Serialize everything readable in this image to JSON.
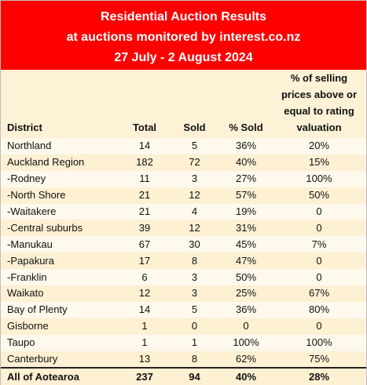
{
  "banner": {
    "line1": "Residential Auction Results",
    "line2": "at auctions monitored by interest.co.nz",
    "line3": "27 July - 2 August 2024"
  },
  "headers": {
    "district": "District",
    "total": "Total",
    "sold": "Sold",
    "pct_sold": "% Sold",
    "valuation_line1": "% of selling",
    "valuation_line2": "prices above or",
    "valuation_line3": "equal to rating",
    "valuation_line4": "valuation"
  },
  "rows": [
    {
      "district": "Northland",
      "total": "14",
      "sold": "5",
      "pct_sold": "36%",
      "valuation": "20%"
    },
    {
      "district": "Auckland Region",
      "total": "182",
      "sold": "72",
      "pct_sold": "40%",
      "valuation": "15%"
    },
    {
      "district": "-Rodney",
      "total": "11",
      "sold": "3",
      "pct_sold": "27%",
      "valuation": "100%"
    },
    {
      "district": "-North Shore",
      "total": "21",
      "sold": "12",
      "pct_sold": "57%",
      "valuation": "50%"
    },
    {
      "district": "-Waitakere",
      "total": "21",
      "sold": "4",
      "pct_sold": "19%",
      "valuation": "0"
    },
    {
      "district": "-Central suburbs",
      "total": "39",
      "sold": "12",
      "pct_sold": "31%",
      "valuation": "0"
    },
    {
      "district": "-Manukau",
      "total": "67",
      "sold": "30",
      "pct_sold": "45%",
      "valuation": "7%"
    },
    {
      "district": "-Papakura",
      "total": "17",
      "sold": "8",
      "pct_sold": "47%",
      "valuation": "0"
    },
    {
      "district": "-Franklin",
      "total": "6",
      "sold": "3",
      "pct_sold": "50%",
      "valuation": "0"
    },
    {
      "district": "Waikato",
      "total": "12",
      "sold": "3",
      "pct_sold": "25%",
      "valuation": "67%"
    },
    {
      "district": "Bay of Plenty",
      "total": "14",
      "sold": "5",
      "pct_sold": "36%",
      "valuation": "80%"
    },
    {
      "district": "Gisborne",
      "total": "1",
      "sold": "0",
      "pct_sold": "0",
      "valuation": "0"
    },
    {
      "district": "Taupo",
      "total": "1",
      "sold": "1",
      "pct_sold": "100%",
      "valuation": "100%"
    },
    {
      "district": "Canterbury",
      "total": "13",
      "sold": "8",
      "pct_sold": "62%",
      "valuation": "75%"
    }
  ],
  "total_row": {
    "district": "All of Aotearoa",
    "total": "237",
    "sold": "94",
    "pct_sold": "40%",
    "valuation": "28%"
  },
  "colors": {
    "banner_bg": "#ff0000",
    "banner_text": "#ffffff",
    "row_light": "#fef9ec",
    "row_dark": "#fdf0d3"
  }
}
